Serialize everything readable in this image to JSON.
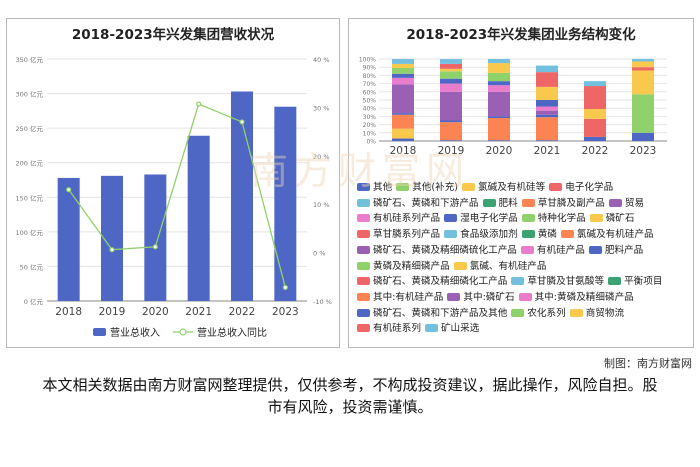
{
  "chart_data": [
    {
      "type": "bar+line",
      "title": "2018-2023年兴发集团营收状况",
      "categories": [
        "2018",
        "2019",
        "2020",
        "2021",
        "2022",
        "2023"
      ],
      "left_axis": {
        "ylim": [
          0,
          350
        ],
        "ticks": [
          "0 亿元",
          "50 亿元",
          "100 亿元",
          "150 亿元",
          "200 亿元",
          "250 亿元",
          "300 亿元",
          "350 亿元"
        ],
        "tick_values": [
          0,
          50,
          100,
          150,
          200,
          250,
          300,
          350
        ]
      },
      "right_axis": {
        "ylim": [
          -10,
          40
        ],
        "ticks": [
          "-10 %",
          "0 %",
          "10 %",
          "20 %",
          "30 %",
          "40 %"
        ],
        "tick_values": [
          -10,
          0,
          10,
          20,
          30,
          40
        ]
      },
      "series": [
        {
          "name": "营业总收入",
          "type": "bar",
          "color": "#4e67c4",
          "values": [
            178,
            181,
            183,
            239,
            303,
            281
          ]
        },
        {
          "name": "营业总收入同比",
          "type": "line",
          "color": "#8fd16b",
          "values": [
            13,
            0.6,
            1.2,
            30.7,
            27,
            -7.2
          ]
        }
      ],
      "legend_position": "bottom",
      "grid": true
    },
    {
      "type": "stacked_bar",
      "title": "2018-2023年兴发集团业务结构变化",
      "categories": [
        "2018",
        "2019",
        "2020",
        "2021",
        "2022",
        "2023"
      ],
      "ylim": [
        0,
        100
      ],
      "ticks": [
        "0%",
        "10%",
        "20%",
        "30%",
        "40%",
        "50%",
        "60%",
        "70%",
        "80%",
        "90%",
        "100%"
      ],
      "tick_values": [
        0,
        10,
        20,
        30,
        40,
        50,
        60,
        70,
        80,
        90,
        100
      ],
      "grid": true,
      "legend_position": "bottom",
      "series": [
        {
          "name": "其他",
          "color": "#4e67c4",
          "values": [
            3,
            1,
            1,
            1,
            5,
            10
          ]
        },
        {
          "name": "其他(补充)",
          "color": "#8fd16b",
          "values": [
            0,
            0,
            0,
            0,
            0,
            47
          ]
        },
        {
          "name": "氯碱及有机硅等",
          "color": "#f9c94e",
          "values": [
            12,
            0,
            0,
            0,
            0,
            29
          ]
        },
        {
          "name": "电子化学品",
          "color": "#ee6666",
          "values": [
            0,
            0,
            0,
            0,
            0,
            4
          ]
        },
        {
          "name": "磷矿石、黄磷和下游产品",
          "color": "#73c0de",
          "values": [
            0,
            0,
            0,
            0,
            0,
            0
          ]
        },
        {
          "name": "肥料",
          "color": "#3ba272",
          "values": [
            0,
            0,
            0,
            0,
            0,
            0
          ]
        },
        {
          "name": "草甘膦及副产品",
          "color": "#fc8452",
          "values": [
            17,
            22,
            27,
            28,
            0,
            0
          ]
        },
        {
          "name": "贸易",
          "color": "#9a60b4",
          "values": [
            0,
            0,
            0,
            0,
            0,
            0
          ]
        },
        {
          "name": "有机硅系列产品",
          "color": "#ea7ccc",
          "values": [
            0,
            0,
            0,
            0,
            0,
            0
          ]
        },
        {
          "name": "湿电子化学品",
          "color": "#4e67c4",
          "values": [
            2,
            2,
            2,
            3,
            0,
            0
          ]
        },
        {
          "name": "特种化学品",
          "color": "#8fd16b",
          "values": [
            0,
            0,
            0,
            0,
            0,
            0
          ]
        },
        {
          "name": "磷矿石",
          "color": "#f9c94e",
          "values": [
            0,
            0,
            0,
            0,
            0,
            0
          ]
        },
        {
          "name": "草甘膦系列产品",
          "color": "#ee6666",
          "values": [
            0,
            0,
            0,
            0,
            22,
            0
          ]
        },
        {
          "name": "食品级添加剂",
          "color": "#73c0de",
          "values": [
            0,
            0,
            0,
            0,
            0,
            0
          ]
        },
        {
          "name": "黄磷",
          "color": "#3ba272",
          "values": [
            0,
            0,
            0,
            0,
            0,
            0
          ]
        },
        {
          "name": "氯碱及有机硅产品",
          "color": "#fc8452",
          "values": [
            0,
            0,
            0,
            0,
            0,
            0
          ]
        },
        {
          "name": "磷矿石、黄磷及精细磷硫化工产品",
          "color": "#9a60b4",
          "values": [
            35,
            35,
            30,
            0,
            0,
            0
          ]
        },
        {
          "name": "有机硅产品",
          "color": "#ea7ccc",
          "values": [
            8,
            10,
            8,
            0,
            0,
            0
          ]
        },
        {
          "name": "肥料产品",
          "color": "#4e67c4",
          "values": [
            5,
            6,
            5,
            0,
            0,
            0
          ]
        },
        {
          "name": "黄磷及精细磷产品",
          "color": "#8fd16b",
          "values": [
            7,
            9,
            10,
            0,
            0,
            0
          ]
        },
        {
          "name": "氯碱、有机硅产品",
          "color": "#f9c94e",
          "values": [
            0,
            0,
            0,
            0,
            0,
            0
          ]
        },
        {
          "name": "磷矿石、黄磷及精细磷化工产品",
          "color": "#ee6666",
          "values": [
            0,
            0,
            0,
            0,
            0,
            0
          ]
        },
        {
          "name": "草甘膦及甘氨酸等",
          "color": "#73c0de",
          "values": [
            0,
            0,
            0,
            0,
            0,
            0
          ]
        },
        {
          "name": "平衡项目",
          "color": "#3ba272",
          "values": [
            0,
            0,
            0,
            0,
            0,
            0
          ]
        },
        {
          "name": "其中:有机硅产品",
          "color": "#fc8452",
          "values": [
            0,
            0,
            0,
            0,
            0,
            0
          ]
        },
        {
          "name": "其中:磷矿石",
          "color": "#9a60b4",
          "values": [
            0,
            0,
            0,
            5,
            0,
            0
          ]
        },
        {
          "name": "其中:黄磷及精细磷产品",
          "color": "#ea7ccc",
          "values": [
            0,
            0,
            0,
            5,
            0,
            0
          ]
        },
        {
          "name": "磷矿石、黄磷和下游产品及其他",
          "color": "#4e67c4",
          "values": [
            0,
            0,
            0,
            8,
            0,
            0
          ]
        },
        {
          "name": "农化系列",
          "color": "#8fd16b",
          "values": [
            0,
            0,
            0,
            0,
            0,
            0
          ]
        },
        {
          "name": "商贸物流",
          "color": "#f9c94e",
          "values": [
            5,
            3,
            12,
            16,
            12,
            7
          ]
        },
        {
          "name": "有机硅系列",
          "color": "#ee6666",
          "values": [
            0,
            6,
            0,
            18,
            28,
            0
          ]
        },
        {
          "name": "矿山采选",
          "color": "#73c0de",
          "values": [
            6,
            6,
            5,
            8,
            6,
            3
          ]
        }
      ]
    }
  ],
  "watermark": "南方财富网",
  "credit": "制图：南方财富网",
  "disclaimer": "本文相关数据由南方财富网整理提供，仅供参考，不构成投资建议，据此操作，风险自担。股市有风险，投资需谨慎。"
}
